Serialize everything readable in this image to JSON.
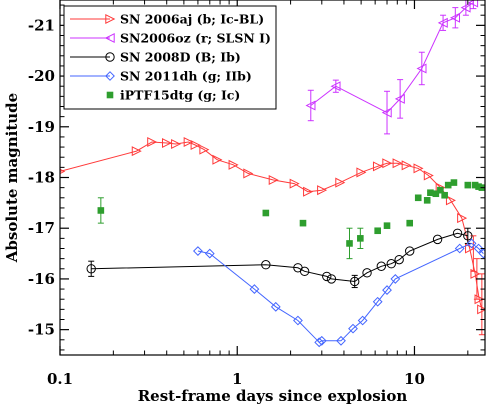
{
  "chart_data": {
    "type": "scatter",
    "xlabel": "Rest-frame days since explosion",
    "ylabel": "Absolute magnitude",
    "xscale": "log",
    "xlim": [
      0.1,
      25
    ],
    "ylim": [
      -14.5,
      -21.5
    ],
    "y_inverted": true,
    "x_ticks": [
      0.1,
      1,
      10
    ],
    "x_tick_labels": [
      "0.1",
      "1",
      "10"
    ],
    "y_ticks": [
      -15,
      -16,
      -17,
      -18,
      -19,
      -20,
      -21
    ],
    "y_tick_labels": [
      "-15",
      "-16",
      "-17",
      "-18",
      "-19",
      "-20",
      "-21"
    ],
    "legend_position": "top-left",
    "grid": false,
    "series": [
      {
        "name": "SN 2006aj (b; Ic-BL)",
        "color": "#ff3a3a",
        "marker": "triangle-right",
        "line": true,
        "points": [
          [
            0.1,
            -18.12
          ],
          [
            0.27,
            -18.52
          ],
          [
            0.33,
            -18.7
          ],
          [
            0.4,
            -18.68
          ],
          [
            0.45,
            -18.66
          ],
          [
            0.53,
            -18.7
          ],
          [
            0.58,
            -18.64
          ],
          [
            0.65,
            -18.55
          ],
          [
            0.77,
            -18.35
          ],
          [
            0.95,
            -18.25
          ],
          [
            1.15,
            -18.08
          ],
          [
            1.6,
            -17.95
          ],
          [
            2.1,
            -17.88
          ],
          [
            2.5,
            -17.72
          ],
          [
            3.0,
            -17.75
          ],
          [
            3.8,
            -17.9
          ],
          [
            5.0,
            -18.1
          ],
          [
            6.2,
            -18.22
          ],
          [
            7.0,
            -18.28
          ],
          [
            8.0,
            -18.28
          ],
          [
            9.0,
            -18.24
          ],
          [
            10.5,
            -18.18
          ],
          [
            12.0,
            -18.04
          ],
          [
            14.0,
            -17.8
          ],
          [
            16.0,
            -17.55
          ],
          [
            18.5,
            -17.2
          ],
          [
            20.5,
            -16.6
          ],
          [
            22.0,
            -16.1
          ],
          [
            23.2,
            -15.6
          ],
          [
            24.0,
            -15.4
          ]
        ],
        "error_points": [
          [
            21.5,
            -16.5,
            0.35
          ],
          [
            22.5,
            -16.0,
            0.4
          ],
          [
            24.0,
            -15.5,
            0.6
          ]
        ]
      },
      {
        "name": "SN2006oz (r; SLSN I)",
        "color": "#cc33ff",
        "marker": "triangle-left",
        "line": true,
        "points": [
          [
            2.6,
            -19.42
          ],
          [
            3.6,
            -19.8
          ],
          [
            7.0,
            -19.28
          ],
          [
            8.3,
            -19.55
          ],
          [
            11.0,
            -20.15
          ],
          [
            14.5,
            -21.05
          ],
          [
            17.0,
            -21.15
          ],
          [
            19.5,
            -21.35
          ],
          [
            21.5,
            -21.45
          ]
        ],
        "error_points": [
          [
            2.6,
            -19.42,
            0.3
          ],
          [
            3.6,
            -19.8,
            0.12
          ],
          [
            7.0,
            -19.28,
            0.42
          ],
          [
            8.3,
            -19.55,
            0.38
          ],
          [
            11.0,
            -20.15,
            0.32
          ],
          [
            14.5,
            -21.05,
            0.15
          ],
          [
            17.0,
            -21.15,
            0.2
          ],
          [
            19.5,
            -21.35,
            0.15
          ],
          [
            21.5,
            -21.45,
            0.12
          ]
        ]
      },
      {
        "name": "SN 2008D (B; Ib)",
        "color": "#000000",
        "marker": "circle",
        "line": true,
        "points": [
          [
            0.15,
            -16.2
          ],
          [
            1.45,
            -16.28
          ],
          [
            2.2,
            -16.22
          ],
          [
            2.4,
            -16.15
          ],
          [
            3.2,
            -16.05
          ],
          [
            3.4,
            -16.0
          ],
          [
            4.6,
            -15.95
          ],
          [
            5.4,
            -16.12
          ],
          [
            6.5,
            -16.25
          ],
          [
            7.4,
            -16.3
          ],
          [
            8.2,
            -16.38
          ],
          [
            9.4,
            -16.55
          ],
          [
            13.5,
            -16.78
          ],
          [
            17.5,
            -16.9
          ],
          [
            20.0,
            -16.85
          ]
        ],
        "error_points": [
          [
            0.15,
            -16.2,
            0.15
          ],
          [
            4.6,
            -15.95,
            0.12
          ],
          [
            20.0,
            -16.85,
            0.15
          ]
        ]
      },
      {
        "name": "SN 2011dh (g; IIb)",
        "color": "#4466ff",
        "marker": "diamond",
        "line": true,
        "points": [
          [
            0.6,
            -16.55
          ],
          [
            0.7,
            -16.5
          ],
          [
            1.25,
            -15.8
          ],
          [
            1.65,
            -15.45
          ],
          [
            2.2,
            -15.18
          ],
          [
            2.9,
            -14.75
          ],
          [
            3.0,
            -14.78
          ],
          [
            3.85,
            -14.78
          ],
          [
            4.5,
            -15.02
          ],
          [
            5.1,
            -15.18
          ],
          [
            6.2,
            -15.55
          ],
          [
            7.0,
            -15.78
          ],
          [
            7.8,
            -16.0
          ],
          [
            18.0,
            -16.6
          ],
          [
            21.0,
            -16.7
          ],
          [
            23.0,
            -16.6
          ],
          [
            24.5,
            -16.5
          ]
        ]
      },
      {
        "name": "iPTF15dtg (g; Ic)",
        "color": "#2e9e2e",
        "marker": "square",
        "line": false,
        "points": [
          [
            0.17,
            -17.35
          ],
          [
            1.45,
            -17.3
          ],
          [
            2.35,
            -17.1
          ],
          [
            4.3,
            -16.7
          ],
          [
            4.95,
            -16.8
          ],
          [
            6.2,
            -16.95
          ],
          [
            7.0,
            -17.05
          ],
          [
            9.4,
            -17.1
          ],
          [
            10.5,
            -17.6
          ],
          [
            11.8,
            -17.55
          ],
          [
            12.3,
            -17.7
          ],
          [
            13.2,
            -17.68
          ],
          [
            14.0,
            -17.75
          ],
          [
            14.8,
            -17.65
          ],
          [
            15.5,
            -17.85
          ],
          [
            16.7,
            -17.9
          ],
          [
            20.0,
            -17.85
          ],
          [
            22.0,
            -17.85
          ],
          [
            23.0,
            -17.82
          ],
          [
            24.0,
            -17.8
          ]
        ],
        "error_points": [
          [
            0.17,
            -17.35,
            0.25
          ],
          [
            4.3,
            -16.7,
            0.3
          ],
          [
            4.95,
            -16.8,
            0.2
          ]
        ]
      }
    ]
  }
}
